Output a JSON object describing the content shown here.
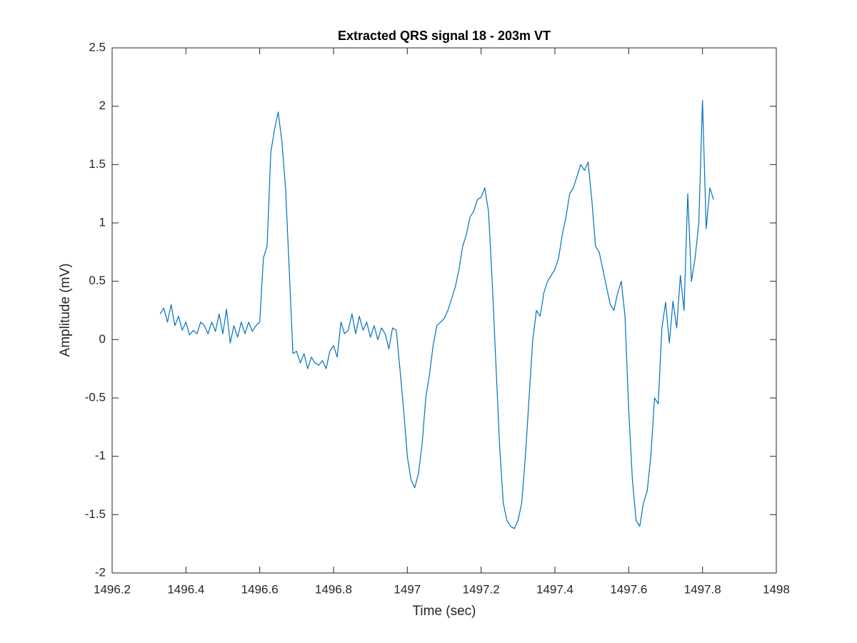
{
  "chart_data": {
    "type": "line",
    "title": "Extracted QRS signal 18 - 203m VT",
    "xlabel": "Time (sec)",
    "ylabel": "Amplitude (mV)",
    "xlim": [
      1496.2,
      1498
    ],
    "ylim": [
      -2,
      2.5
    ],
    "xticks": [
      1496.2,
      1496.4,
      1496.6,
      1496.8,
      1497,
      1497.2,
      1497.4,
      1497.6,
      1497.8,
      1498
    ],
    "yticks": [
      -2,
      -1.5,
      -1,
      -0.5,
      0,
      0.5,
      1,
      1.5,
      2,
      2.5
    ],
    "grid": false,
    "x": [
      1496.33,
      1496.34,
      1496.35,
      1496.36,
      1496.37,
      1496.38,
      1496.39,
      1496.4,
      1496.41,
      1496.42,
      1496.43,
      1496.44,
      1496.45,
      1496.46,
      1496.47,
      1496.48,
      1496.49,
      1496.5,
      1496.51,
      1496.52,
      1496.53,
      1496.54,
      1496.55,
      1496.56,
      1496.57,
      1496.58,
      1496.59,
      1496.6,
      1496.61,
      1496.62,
      1496.63,
      1496.64,
      1496.65,
      1496.66,
      1496.67,
      1496.68,
      1496.69,
      1496.7,
      1496.71,
      1496.72,
      1496.73,
      1496.74,
      1496.75,
      1496.76,
      1496.77,
      1496.78,
      1496.79,
      1496.8,
      1496.81,
      1496.82,
      1496.83,
      1496.84,
      1496.85,
      1496.86,
      1496.87,
      1496.88,
      1496.89,
      1496.9,
      1496.91,
      1496.92,
      1496.93,
      1496.94,
      1496.95,
      1496.96,
      1496.97,
      1496.98,
      1496.99,
      1497,
      1497.01,
      1497.02,
      1497.03,
      1497.04,
      1497.05,
      1497.06,
      1497.07,
      1497.08,
      1497.09,
      1497.1,
      1497.11,
      1497.12,
      1497.13,
      1497.14,
      1497.15,
      1497.16,
      1497.17,
      1497.18,
      1497.19,
      1497.2,
      1497.21,
      1497.22,
      1497.23,
      1497.24,
      1497.25,
      1497.26,
      1497.27,
      1497.28,
      1497.29,
      1497.3,
      1497.31,
      1497.32,
      1497.33,
      1497.34,
      1497.35,
      1497.36,
      1497.37,
      1497.38,
      1497.39,
      1497.4,
      1497.41,
      1497.42,
      1497.43,
      1497.44,
      1497.45,
      1497.46,
      1497.47,
      1497.48,
      1497.49,
      1497.5,
      1497.51,
      1497.52,
      1497.53,
      1497.54,
      1497.55,
      1497.56,
      1497.57,
      1497.58,
      1497.59,
      1497.6,
      1497.61,
      1497.62,
      1497.63,
      1497.64,
      1497.65,
      1497.66,
      1497.67,
      1497.68,
      1497.69,
      1497.7,
      1497.71,
      1497.72,
      1497.73,
      1497.74,
      1497.75,
      1497.76,
      1497.77,
      1497.78,
      1497.79,
      1497.8,
      1497.81,
      1497.82,
      1497.83
    ],
    "series": [
      {
        "name": "QRS signal",
        "color": "#0072bd",
        "values": [
          0.22,
          0.27,
          0.15,
          0.3,
          0.12,
          0.2,
          0.08,
          0.15,
          0.04,
          0.08,
          0.05,
          0.15,
          0.12,
          0.05,
          0.15,
          0.07,
          0.22,
          0.05,
          0.26,
          -0.03,
          0.12,
          0.02,
          0.15,
          0.05,
          0.15,
          0.07,
          0.12,
          0.15,
          0.7,
          0.8,
          1.6,
          1.8,
          1.95,
          1.7,
          1.3,
          0.6,
          -0.12,
          -0.1,
          -0.2,
          -0.12,
          -0.25,
          -0.15,
          -0.2,
          -0.22,
          -0.18,
          -0.25,
          -0.1,
          -0.05,
          -0.15,
          0.15,
          0.05,
          0.08,
          0.22,
          0.05,
          0.2,
          0.08,
          0.15,
          0.02,
          0.12,
          0.0,
          0.1,
          0.05,
          -0.08,
          0.1,
          0.08,
          -0.25,
          -0.6,
          -1.0,
          -1.2,
          -1.27,
          -1.15,
          -0.9,
          -0.5,
          -0.3,
          -0.05,
          0.12,
          0.15,
          0.18,
          0.25,
          0.35,
          0.45,
          0.6,
          0.8,
          0.9,
          1.05,
          1.1,
          1.2,
          1.22,
          1.3,
          1.1,
          0.5,
          -0.2,
          -0.9,
          -1.4,
          -1.55,
          -1.6,
          -1.62,
          -1.55,
          -1.4,
          -1.0,
          -0.5,
          0.0,
          0.25,
          0.2,
          0.4,
          0.5,
          0.55,
          0.6,
          0.7,
          0.9,
          1.05,
          1.25,
          1.3,
          1.4,
          1.5,
          1.45,
          1.52,
          1.2,
          0.8,
          0.75,
          0.6,
          0.45,
          0.3,
          0.25,
          0.4,
          0.5,
          0.2,
          -0.6,
          -1.2,
          -1.55,
          -1.6,
          -1.4,
          -1.3,
          -1.0,
          -0.5,
          -0.55,
          0.1,
          0.32,
          -0.03,
          0.33,
          0.1,
          0.55,
          0.25,
          1.25,
          0.5,
          0.7,
          1.0,
          2.05,
          0.95,
          1.3,
          1.2
        ]
      }
    ]
  }
}
